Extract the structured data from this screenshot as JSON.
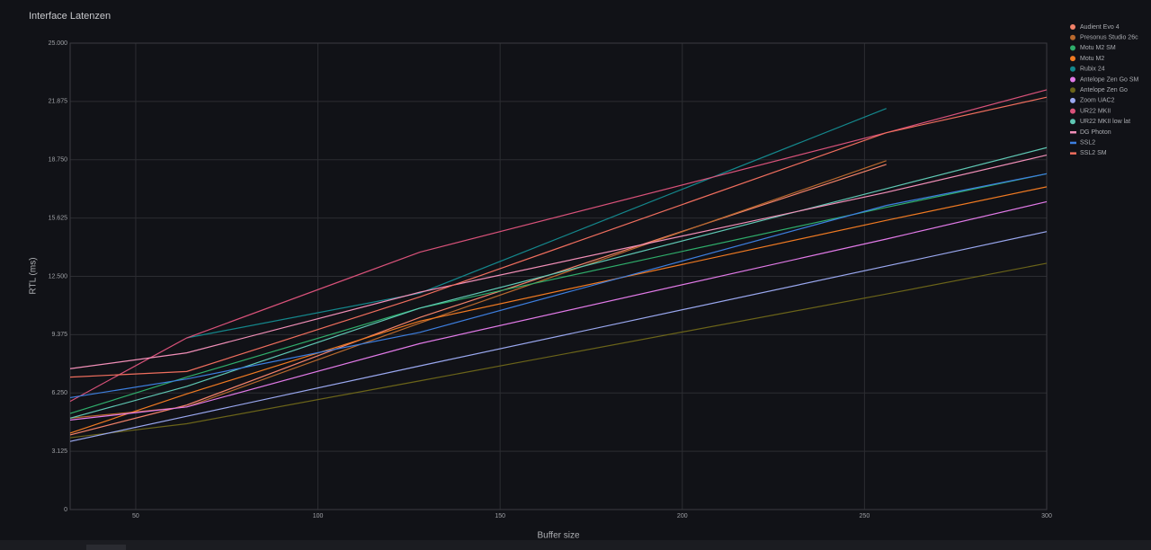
{
  "chart_data": {
    "type": "line",
    "title": "Interface Latenzen",
    "x_label": "Buffer size",
    "y_label": "RTL (ms)",
    "x": [
      32,
      64,
      128,
      256,
      300
    ],
    "xlim": [
      32,
      300
    ],
    "xticks": [
      50,
      100,
      150,
      200,
      250,
      300
    ],
    "ylim": [
      0,
      25
    ],
    "yticks": [
      0,
      3.125,
      {
        "value": 6.25,
        "label": "6.250"
      },
      9.375,
      {
        "value": 12.5,
        "label": "12.500"
      },
      15.625,
      {
        "value": 18.75,
        "label": "18.750"
      },
      21.875,
      {
        "value": 25,
        "label": "25.000"
      }
    ],
    "grid": true,
    "legend": "right",
    "series": [
      {
        "name": "Audient Evo 4",
        "color": "#f2826a",
        "marker": "circle",
        "values": [
          4.0,
          5.6,
          10.3,
          18.5,
          null
        ]
      },
      {
        "name": "Presonus Studio 26c",
        "color": "#b8692e",
        "marker": "circle",
        "values": [
          4.9,
          5.5,
          10.0,
          18.7,
          null
        ]
      },
      {
        "name": "Motu M2 SM",
        "color": "#2fae6b",
        "marker": "circle",
        "values": [
          5.15,
          7.1,
          10.8,
          16.2,
          18.0
        ]
      },
      {
        "name": "Motu M2",
        "color": "#f07a22",
        "marker": "circle",
        "values": [
          4.1,
          6.2,
          10.1,
          15.5,
          17.3
        ]
      },
      {
        "name": "Rubix 24",
        "color": "#14878c",
        "marker": "circle",
        "values": [
          null,
          9.2,
          11.6,
          21.5,
          null
        ]
      },
      {
        "name": "Antelope Zen Go SM",
        "color": "#e27ae8",
        "marker": "circle",
        "values": [
          4.8,
          5.5,
          8.9,
          14.5,
          16.5
        ]
      },
      {
        "name": "Antelope Zen Go",
        "color": "#6b6419",
        "marker": "circle",
        "values": [
          3.85,
          4.6,
          6.9,
          11.55,
          13.2
        ]
      },
      {
        "name": "Zoom UAC2",
        "color": "#9aa8f0",
        "marker": "circle",
        "values": [
          3.65,
          5.0,
          7.7,
          13.05,
          14.9
        ]
      },
      {
        "name": "UR22 MKII",
        "color": "#d9527a",
        "marker": "circle",
        "values": [
          5.8,
          9.2,
          13.8,
          20.2,
          22.5
        ]
      },
      {
        "name": "UR22 MKII low lat",
        "color": "#5fc8b4",
        "marker": "circle",
        "values": [
          4.9,
          6.6,
          10.8,
          17.2,
          19.4
        ]
      },
      {
        "name": "DG Photon",
        "color": "#f28fb8",
        "marker": "line",
        "values": [
          7.55,
          8.4,
          11.65,
          17.0,
          19.0
        ]
      },
      {
        "name": "SSL2",
        "color": "#3d7fe0",
        "marker": "line",
        "values": [
          6.0,
          7.0,
          9.5,
          16.3,
          18.0
        ]
      },
      {
        "name": "SSL2 SM",
        "color": "#f06e5e",
        "marker": "line",
        "values": [
          7.1,
          7.4,
          11.4,
          20.2,
          22.1
        ]
      }
    ]
  }
}
